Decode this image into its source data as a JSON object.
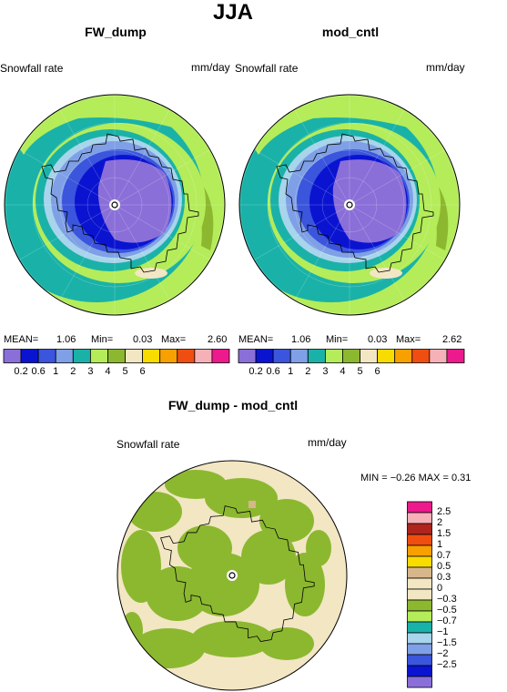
{
  "title": "JJA",
  "colors": {
    "lavender": "#8b6fd8",
    "blue": "#0a14d0",
    "midblue": "#3b55dc",
    "ltblue": "#7fa0e6",
    "paleblue": "#a8d4ec",
    "teal": "#1ab2a8",
    "olive": "#8cb830",
    "lime": "#b4ec5a",
    "cream": "#f2e6c3",
    "tan": "#d6b68a",
    "yellow": "#f8dc00",
    "orange": "#f8a000",
    "redorange": "#f04e10",
    "darkred": "#b0241e",
    "pink": "#f6b0b8",
    "magenta": "#ec1a8c",
    "grid": "#ffffff",
    "outline": "#000000"
  },
  "panels": [
    {
      "id": "fw-dump",
      "title": "FW_dump",
      "left_label": "Snowfall rate",
      "right_label": "mm/day",
      "stats": {
        "mean_label": "MEAN=",
        "mean": "1.06",
        "min_label": "Min=",
        "min": "0.03",
        "max_label": "Max=",
        "max": "2.60"
      }
    },
    {
      "id": "mod-cntl",
      "title": "mod_cntl",
      "left_label": "Snowfall rate",
      "right_label": "mm/day",
      "stats": {
        "mean_label": "MEAN=",
        "mean": "1.06",
        "min_label": "Min=",
        "min": "0.03",
        "max_label": "Max=",
        "max": "2.62"
      }
    }
  ],
  "colorbar_top": {
    "colors": [
      "lavender",
      "blue",
      "midblue",
      "ltblue",
      "teal",
      "lime",
      "olive",
      "cream",
      "yellow",
      "orange",
      "redorange",
      "pink",
      "magenta"
    ],
    "ticks": [
      "0.2",
      "0.6",
      "1",
      "2",
      "3",
      "4",
      "5",
      "6"
    ]
  },
  "diff": {
    "title": "FW_dump - mod_cntl",
    "left_label": "Snowfall rate",
    "right_label": "mm/day",
    "stats": "MIN =   −0.26  MAX =    0.31",
    "colorbar": {
      "colors": [
        "magenta",
        "pink",
        "darkred",
        "redorange",
        "orange",
        "yellow",
        "tan",
        "cream",
        "cream",
        "olive",
        "lime",
        "teal",
        "paleblue",
        "ltblue",
        "midblue",
        "blue",
        "lavender"
      ],
      "ticks": [
        "2.5",
        "2",
        "1.5",
        "1",
        "0.7",
        "0.5",
        "0.3",
        "0",
        "−0.3",
        "−0.5",
        "−0.7",
        "−1",
        "−1.5",
        "−2",
        "−2.5"
      ]
    }
  },
  "chart_data": [
    {
      "type": "heatmap",
      "title": "FW_dump",
      "variable": "Snowfall rate",
      "units": "mm/day",
      "projection": "polar stereographic (south pole)",
      "season": "JJA",
      "mean": 1.06,
      "min": 0.03,
      "max": 2.6,
      "levels": [
        0.2,
        0.6,
        1,
        2,
        3,
        4,
        5,
        6
      ]
    },
    {
      "type": "heatmap",
      "title": "mod_cntl",
      "variable": "Snowfall rate",
      "units": "mm/day",
      "projection": "polar stereographic (south pole)",
      "season": "JJA",
      "mean": 1.06,
      "min": 0.03,
      "max": 2.62,
      "levels": [
        0.2,
        0.6,
        1,
        2,
        3,
        4,
        5,
        6
      ]
    },
    {
      "type": "heatmap",
      "title": "FW_dump - mod_cntl",
      "variable": "Snowfall rate",
      "units": "mm/day",
      "projection": "polar stereographic (south pole)",
      "season": "JJA",
      "min": -0.26,
      "max": 0.31,
      "levels": [
        -2.5,
        -2,
        -1.5,
        -1,
        -0.7,
        -0.5,
        -0.3,
        0,
        0.3,
        0.5,
        0.7,
        1,
        1.5,
        2,
        2.5
      ]
    }
  ]
}
